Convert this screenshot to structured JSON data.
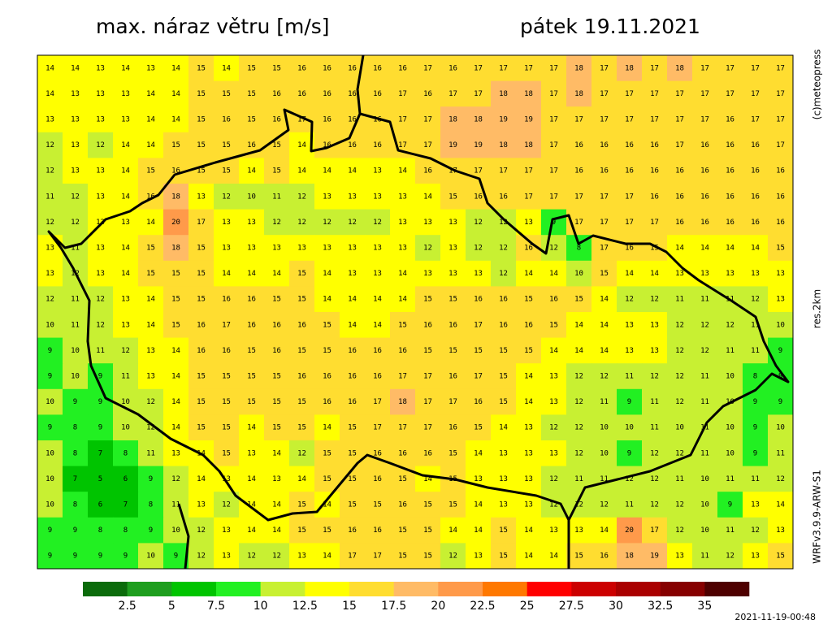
{
  "header": {
    "title": "max. náraz větru [m/s]",
    "date": "pátek 19.11.2021"
  },
  "side": {
    "copyright": "(c)meteopress",
    "resolution": "res.2km",
    "model": "WRFv3.9.9-ARW-S1"
  },
  "timestamp": "2021-11-19-00:48",
  "legend": {
    "ticks": [
      2.5,
      5,
      7.5,
      10,
      12.5,
      15,
      17.5,
      20,
      22.5,
      25,
      27.5,
      30,
      32.5,
      35
    ],
    "colors": [
      "#0b6b0b",
      "#1e9e1e",
      "#00c400",
      "#22f022",
      "#c8f032",
      "#ffff00",
      "#ffdd30",
      "#ffbb66",
      "#ff9a4a",
      "#ff7800",
      "#ff0000",
      "#cc0000",
      "#aa0000",
      "#860000",
      "#4e0000"
    ]
  },
  "grid": {
    "rows": [
      [
        14,
        14,
        13,
        14,
        13,
        14,
        15,
        14,
        15,
        15,
        16,
        16,
        16,
        16,
        16,
        17,
        16,
        17,
        17,
        17,
        17,
        18,
        17,
        18,
        17,
        18,
        17,
        17,
        17,
        17
      ],
      [
        14,
        13,
        13,
        13,
        14,
        14,
        15,
        15,
        15,
        16,
        16,
        16,
        16,
        16,
        17,
        16,
        17,
        17,
        18,
        18,
        17,
        18,
        17,
        17,
        17,
        17,
        17,
        17,
        17,
        17
      ],
      [
        13,
        13,
        13,
        13,
        14,
        14,
        15,
        16,
        15,
        16,
        17,
        16,
        16,
        16,
        17,
        17,
        18,
        18,
        19,
        19,
        17,
        17,
        17,
        17,
        17,
        17,
        17,
        16,
        17,
        17
      ],
      [
        12,
        13,
        12,
        14,
        14,
        15,
        15,
        15,
        16,
        15,
        14,
        16,
        16,
        16,
        17,
        17,
        19,
        19,
        18,
        18,
        17,
        16,
        16,
        16,
        16,
        17,
        16,
        16,
        16,
        17
      ],
      [
        12,
        13,
        13,
        14,
        15,
        16,
        15,
        15,
        14,
        15,
        14,
        14,
        14,
        13,
        14,
        16,
        17,
        17,
        17,
        17,
        17,
        16,
        16,
        16,
        16,
        16,
        16,
        16,
        16,
        16
      ],
      [
        11,
        12,
        13,
        14,
        16,
        18,
        13,
        12,
        10,
        11,
        12,
        13,
        13,
        13,
        13,
        14,
        15,
        16,
        16,
        17,
        17,
        17,
        17,
        17,
        16,
        16,
        16,
        16,
        16,
        16
      ],
      [
        12,
        12,
        13,
        13,
        14,
        20,
        17,
        13,
        13,
        12,
        12,
        12,
        12,
        12,
        13,
        13,
        13,
        12,
        12,
        13,
        9,
        17,
        17,
        17,
        17,
        16,
        16,
        16,
        16,
        16
      ],
      [
        13,
        11,
        13,
        14,
        15,
        18,
        15,
        13,
        13,
        13,
        13,
        13,
        13,
        13,
        13,
        12,
        13,
        12,
        12,
        16,
        12,
        8,
        17,
        16,
        15,
        14,
        14,
        14,
        14,
        15
      ],
      [
        13,
        12,
        13,
        14,
        15,
        15,
        15,
        14,
        14,
        14,
        15,
        14,
        13,
        13,
        14,
        13,
        13,
        13,
        12,
        14,
        14,
        10,
        15,
        14,
        14,
        13,
        13,
        13,
        13,
        13
      ],
      [
        12,
        11,
        12,
        13,
        14,
        15,
        15,
        16,
        16,
        15,
        15,
        14,
        14,
        14,
        14,
        15,
        15,
        16,
        16,
        15,
        16,
        15,
        14,
        12,
        12,
        11,
        11,
        11,
        12,
        13
      ],
      [
        10,
        11,
        12,
        13,
        14,
        15,
        16,
        17,
        16,
        16,
        16,
        15,
        14,
        14,
        15,
        16,
        16,
        17,
        16,
        16,
        15,
        14,
        14,
        13,
        13,
        12,
        12,
        12,
        11,
        10
      ],
      [
        9,
        10,
        11,
        12,
        13,
        14,
        16,
        16,
        15,
        16,
        15,
        15,
        16,
        16,
        16,
        15,
        15,
        15,
        15,
        15,
        14,
        14,
        14,
        13,
        13,
        12,
        12,
        11,
        11,
        9
      ],
      [
        9,
        10,
        9,
        11,
        13,
        14,
        15,
        15,
        15,
        15,
        16,
        16,
        16,
        16,
        17,
        17,
        16,
        17,
        15,
        14,
        13,
        12,
        12,
        11,
        12,
        12,
        11,
        10,
        8,
        8
      ],
      [
        10,
        9,
        9,
        10,
        12,
        14,
        15,
        15,
        15,
        15,
        15,
        16,
        16,
        17,
        18,
        17,
        17,
        16,
        15,
        14,
        13,
        12,
        11,
        9,
        11,
        12,
        11,
        10,
        9,
        9
      ],
      [
        9,
        8,
        9,
        10,
        12,
        14,
        15,
        15,
        14,
        15,
        15,
        14,
        15,
        17,
        17,
        17,
        16,
        15,
        14,
        13,
        12,
        12,
        10,
        10,
        11,
        10,
        11,
        10,
        9,
        10
      ],
      [
        10,
        8,
        7,
        8,
        11,
        13,
        14,
        15,
        13,
        14,
        12,
        15,
        15,
        16,
        16,
        16,
        15,
        14,
        13,
        13,
        13,
        12,
        10,
        9,
        12,
        12,
        11,
        10,
        9,
        11
      ],
      [
        10,
        7,
        5,
        6,
        9,
        12,
        14,
        13,
        14,
        13,
        14,
        15,
        15,
        16,
        15,
        14,
        15,
        13,
        13,
        13,
        12,
        11,
        11,
        12,
        12,
        11,
        10,
        11,
        11,
        12
      ],
      [
        10,
        8,
        6,
        7,
        8,
        11,
        13,
        12,
        14,
        14,
        15,
        14,
        15,
        15,
        16,
        15,
        15,
        14,
        13,
        13,
        12,
        12,
        12,
        11,
        12,
        12,
        10,
        9,
        13,
        14
      ],
      [
        9,
        9,
        8,
        8,
        9,
        10,
        12,
        13,
        14,
        14,
        15,
        15,
        16,
        16,
        15,
        15,
        14,
        14,
        15,
        14,
        13,
        13,
        14,
        20,
        17,
        12,
        10,
        11,
        12,
        13
      ],
      [
        9,
        9,
        9,
        9,
        10,
        9,
        12,
        13,
        12,
        12,
        13,
        14,
        17,
        17,
        15,
        15,
        12,
        13,
        15,
        14,
        14,
        15,
        16,
        18,
        19,
        13,
        11,
        12,
        13,
        15
      ]
    ]
  }
}
